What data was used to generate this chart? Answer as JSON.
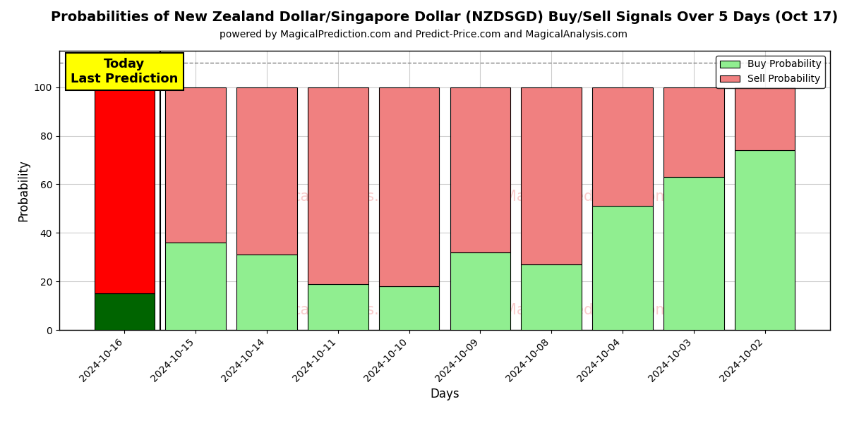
{
  "title": "Probabilities of New Zealand Dollar/Singapore Dollar (NZDSGD) Buy/Sell Signals Over 5 Days (Oct 17)",
  "subtitle": "powered by MagicalPrediction.com and Predict-Price.com and MagicalAnalysis.com",
  "xlabel": "Days",
  "ylabel": "Probability",
  "categories": [
    "2024-10-16",
    "2024-10-15",
    "2024-10-14",
    "2024-10-11",
    "2024-10-10",
    "2024-10-09",
    "2024-10-08",
    "2024-10-04",
    "2024-10-03",
    "2024-10-02"
  ],
  "buy_values": [
    15,
    36,
    31,
    19,
    18,
    32,
    27,
    51,
    63,
    74
  ],
  "sell_values": [
    85,
    64,
    69,
    81,
    82,
    68,
    73,
    49,
    37,
    26
  ],
  "buy_color_today": "#006400",
  "sell_color_today": "#ff0000",
  "buy_color": "#90EE90",
  "sell_color": "#F08080",
  "today_annotation_text": "Today\nLast Prediction",
  "today_annotation_bg": "#ffff00",
  "legend_buy_label": "Buy Probability",
  "legend_sell_label": "Sell Probability",
  "ylim": [
    0,
    115
  ],
  "yticks": [
    0,
    20,
    40,
    60,
    80,
    100
  ],
  "dashed_line_y": 110,
  "bar_width": 0.85,
  "background_color": "#ffffff",
  "grid_color": "#cccccc",
  "title_fontsize": 14,
  "subtitle_fontsize": 10,
  "axis_label_fontsize": 12,
  "tick_fontsize": 10
}
